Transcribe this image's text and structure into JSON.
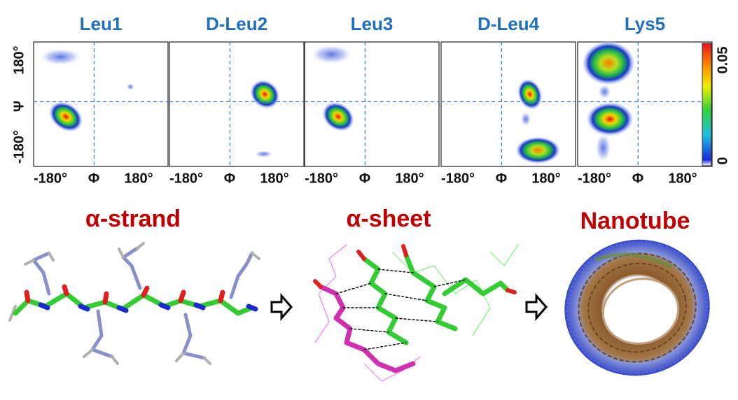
{
  "panels": [
    {
      "title": "Leu1",
      "x_labels": [
        "-180°",
        "Φ",
        "180°"
      ]
    },
    {
      "title": "D-Leu2",
      "x_labels": [
        "-180°",
        "Φ",
        "180°"
      ]
    },
    {
      "title": "Leu3",
      "x_labels": [
        "-180°",
        "Φ",
        "180°"
      ]
    },
    {
      "title": "D-Leu4",
      "x_labels": [
        "-180°",
        "Φ",
        "180°"
      ]
    },
    {
      "title": "Lys5",
      "x_labels": [
        "-180°",
        "Φ",
        "180°"
      ]
    }
  ],
  "y_labels": [
    "180°",
    "Ψ",
    "-180°"
  ],
  "colorbar": {
    "max_label": "0.05",
    "min_label": "0"
  },
  "structures": [
    {
      "label": "α-strand"
    },
    {
      "label": "α-sheet"
    },
    {
      "label": "Nanotube"
    }
  ]
}
